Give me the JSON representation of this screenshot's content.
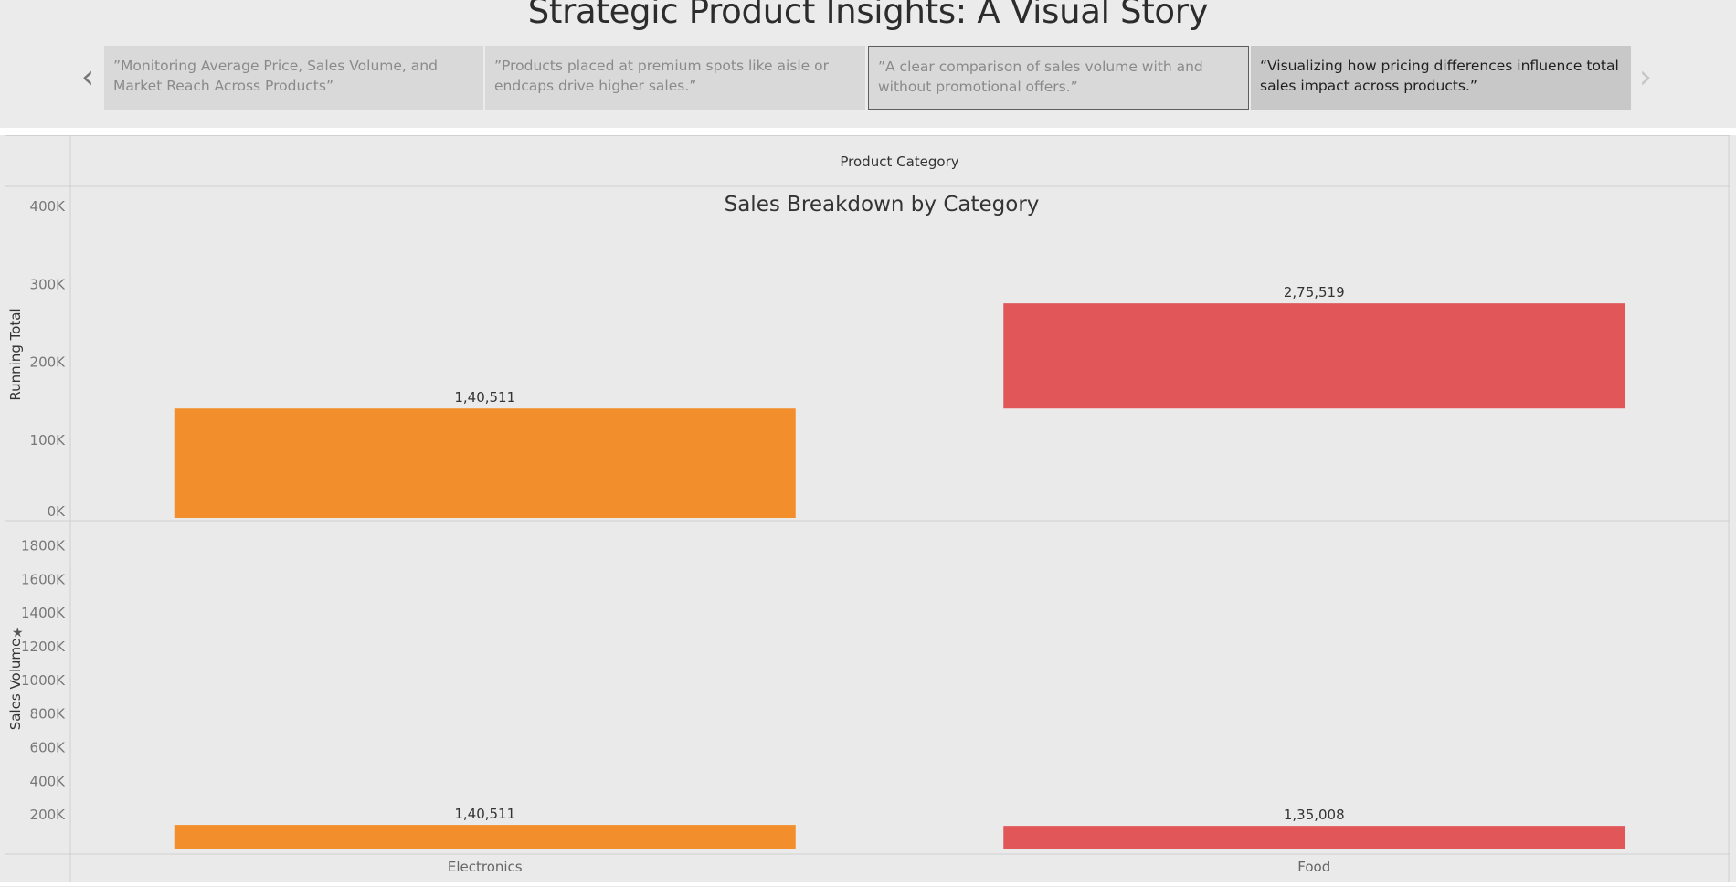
{
  "story": {
    "title": "Strategic Product Insights: A Visual Story",
    "points": [
      "”Monitoring Average Price, Sales Volume, and Market Reach Across Products”",
      "”Products placed at premium spots like aisle or endcaps drive higher sales.”",
      "”A clear comparison of sales volume with and without promotional offers.”",
      "“Visualizing how pricing differences influence total sales impact across products.”"
    ],
    "prev_icon": "chevron-left-icon",
    "next_icon": "chevron-right-icon"
  },
  "chart_data": {
    "type": "bar",
    "title": "Sales Breakdown by Category",
    "column_header": "Product Category",
    "categories": [
      "Electronics",
      "Food"
    ],
    "colors": {
      "Electronics": "#f28e2b",
      "Food": "#e15759"
    },
    "panes": [
      {
        "ylabel": "Running Total",
        "ylim": [
          0,
          420000
        ],
        "ticks": [
          0,
          100000,
          200000,
          300000,
          400000
        ],
        "tick_labels": [
          "0K",
          "100K",
          "200K",
          "300K",
          "400K"
        ],
        "bars": [
          {
            "category": "Electronics",
            "from": 0,
            "to": 140511,
            "label": "1,40,511"
          },
          {
            "category": "Food",
            "from": 140511,
            "to": 275519,
            "label": "2,75,519"
          }
        ]
      },
      {
        "ylabel": "Sales Volume",
        "ylim": [
          0,
          1900000
        ],
        "ticks": [
          200000,
          400000,
          600000,
          800000,
          1000000,
          1200000,
          1400000,
          1600000,
          1800000
        ],
        "tick_labels": [
          "200K",
          "400K",
          "600K",
          "800K",
          "1000K",
          "1200K",
          "1400K",
          "1600K",
          "1800K"
        ],
        "bars": [
          {
            "category": "Electronics",
            "value": 140511,
            "label": "1,40,511"
          },
          {
            "category": "Food",
            "value": 135008,
            "label": "1,35,008"
          }
        ]
      }
    ]
  }
}
